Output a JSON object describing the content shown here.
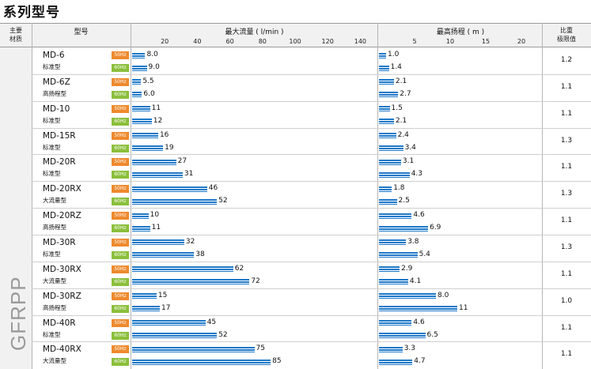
{
  "title": "系列型号",
  "header": {
    "material": [
      "主要",
      "材质"
    ],
    "model": "型号",
    "flow": "最大流量 ( l/min )",
    "head": "最高扬程 ( m )",
    "ratio": [
      "比重",
      "极限值"
    ],
    "flow_ticks": [
      "20",
      "40",
      "60",
      "80",
      "100",
      "120",
      "140"
    ],
    "head_ticks": [
      "5",
      "10",
      "15",
      "20"
    ]
  },
  "material": "GFRPP",
  "hz": {
    "a": "50Hz",
    "b": "60Hz"
  },
  "chart_data": {
    "type": "bar",
    "categories": [
      "MD-6",
      "MD-6Z",
      "MD-10",
      "MD-15R",
      "MD-20R",
      "MD-20RX",
      "MD-20RZ",
      "MD-30R",
      "MD-30RX",
      "MD-30RZ",
      "MD-40R",
      "MD-40RX"
    ],
    "flow_xlim": [
      0,
      150
    ],
    "head_xlim": [
      0,
      24
    ],
    "series": [
      {
        "name": "最大流量 50Hz",
        "values": [
          8.0,
          5.5,
          11,
          16,
          27,
          46,
          10,
          32,
          62,
          15,
          45,
          75
        ]
      },
      {
        "name": "最大流量 60Hz",
        "values": [
          9.0,
          6.0,
          12,
          19,
          31,
          52,
          11,
          38,
          72,
          17,
          52,
          85
        ]
      },
      {
        "name": "最高扬程 50Hz",
        "values": [
          1.0,
          2.1,
          1.5,
          2.4,
          3.1,
          1.8,
          4.6,
          3.8,
          2.9,
          8.0,
          4.6,
          3.3
        ]
      },
      {
        "name": "最高扬程 60Hz",
        "values": [
          1.4,
          2.7,
          2.1,
          3.4,
          4.3,
          2.5,
          6.9,
          5.4,
          4.1,
          11,
          6.5,
          4.7
        ]
      }
    ]
  },
  "rows": [
    {
      "model": "MD-6",
      "type": "标准型",
      "flow": [
        "8.0",
        "9.0"
      ],
      "head": [
        "1.0",
        "1.4"
      ],
      "ratio": "1.2"
    },
    {
      "model": "MD-6Z",
      "type": "高扬程型",
      "flow": [
        "5.5",
        "6.0"
      ],
      "head": [
        "2.1",
        "2.7"
      ],
      "ratio": "1.1"
    },
    {
      "model": "MD-10",
      "type": "标准型",
      "flow": [
        "11",
        "12"
      ],
      "head": [
        "1.5",
        "2.1"
      ],
      "ratio": "1.1"
    },
    {
      "model": "MD-15R",
      "type": "标准型",
      "flow": [
        "16",
        "19"
      ],
      "head": [
        "2.4",
        "3.4"
      ],
      "ratio": "1.3"
    },
    {
      "model": "MD-20R",
      "type": "标准型",
      "flow": [
        "27",
        "31"
      ],
      "head": [
        "3.1",
        "4.3"
      ],
      "ratio": "1.1"
    },
    {
      "model": "MD-20RX",
      "type": "大流量型",
      "flow": [
        "46",
        "52"
      ],
      "head": [
        "1.8",
        "2.5"
      ],
      "ratio": "1.3"
    },
    {
      "model": "MD-20RZ",
      "type": "高扬程型",
      "flow": [
        "10",
        "11"
      ],
      "head": [
        "4.6",
        "6.9"
      ],
      "ratio": "1.1"
    },
    {
      "model": "MD-30R",
      "type": "标准型",
      "flow": [
        "32",
        "38"
      ],
      "head": [
        "3.8",
        "5.4"
      ],
      "ratio": "1.3"
    },
    {
      "model": "MD-30RX",
      "type": "大流量型",
      "flow": [
        "62",
        "72"
      ],
      "head": [
        "2.9",
        "4.1"
      ],
      "ratio": "1.1"
    },
    {
      "model": "MD-30RZ",
      "type": "高扬程型",
      "flow": [
        "15",
        "17"
      ],
      "head": [
        "8.0",
        "11"
      ],
      "ratio": "1.0"
    },
    {
      "model": "MD-40R",
      "type": "标准型",
      "flow": [
        "45",
        "52"
      ],
      "head": [
        "4.6",
        "6.5"
      ],
      "ratio": "1.1"
    },
    {
      "model": "MD-40RX",
      "type": "大流量型",
      "flow": [
        "75",
        "85"
      ],
      "head": [
        "3.3",
        "4.7"
      ],
      "ratio": "1.1"
    }
  ]
}
